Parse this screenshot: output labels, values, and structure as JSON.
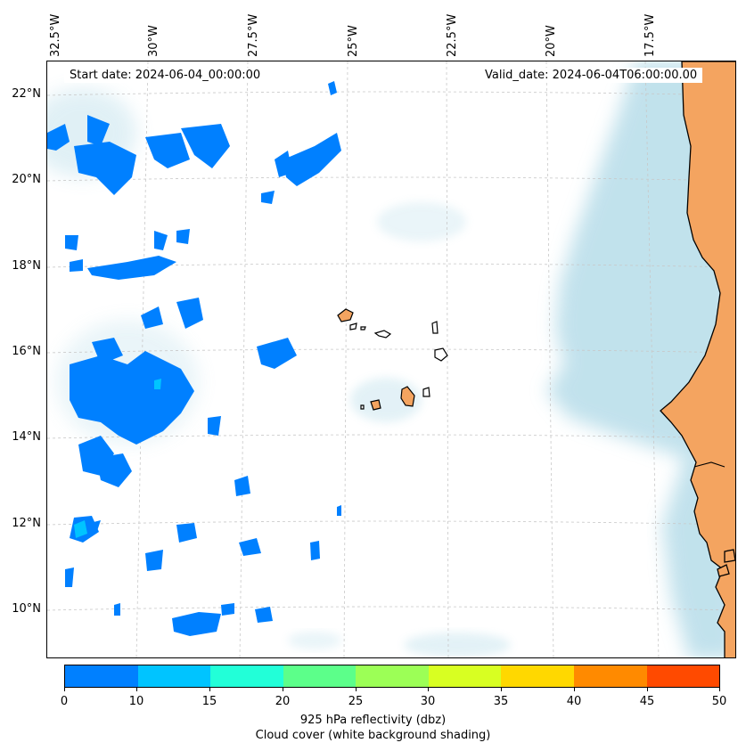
{
  "header": {
    "start_date": "Start date: 2024-06-04_00:00:00",
    "valid_date": "Valid_date: 2024-06-04T06:00:00.00"
  },
  "map": {
    "lon_labels": [
      "32.5°W",
      "30°W",
      "27.5°W",
      "25°W",
      "22.5°W",
      "20°W",
      "17.5°W"
    ],
    "lat_labels": [
      "22°N",
      "20°N",
      "18°N",
      "16°N",
      "14°N",
      "12°N",
      "10°N"
    ],
    "colors": {
      "land": "#f4a460",
      "cloud": "#add8e6",
      "echo_low": "#0080ff",
      "echo_mid": "#00c4ff",
      "gridline": "#c8c8c8"
    }
  },
  "colorbar": {
    "ticks": [
      "0",
      "10",
      "15",
      "20",
      "25",
      "30",
      "35",
      "40",
      "45",
      "50"
    ],
    "colors": [
      "#0080ff",
      "#00c4ff",
      "#22ffd8",
      "#5cff8a",
      "#9cff56",
      "#d8ff22",
      "#ffd800",
      "#ff8a00",
      "#ff4a00"
    ],
    "label": "925 hPa reflectivity (dbz)",
    "sublabel": "Cloud cover (white background shading)"
  }
}
